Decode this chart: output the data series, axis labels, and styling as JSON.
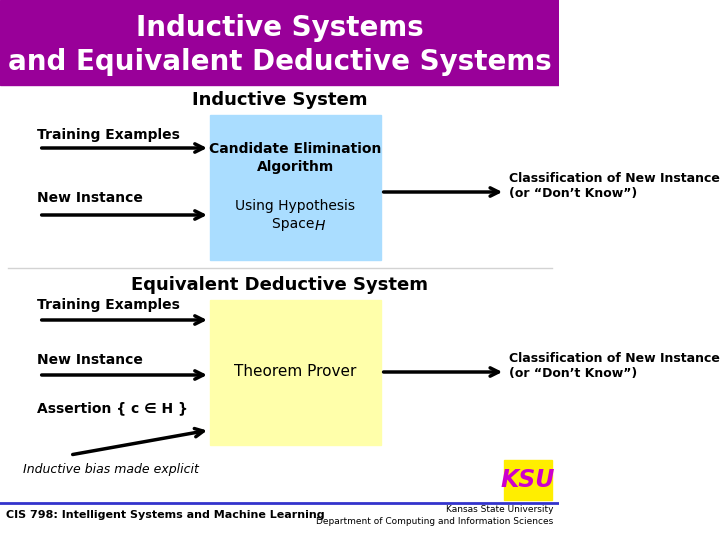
{
  "title_line1": "Inductive Systems",
  "title_line2": "and Equivalent Deductive Systems",
  "title_bg": "#990099",
  "title_color": "#ffffff",
  "inductive_box_color": "#aaddff",
  "deductive_box_color": "#ffffaa",
  "background": "#ffffff",
  "footer_left": "CIS 798: Intelligent Systems and Machine Learning",
  "footer_right_line1": "Kansas State University",
  "footer_right_line2": "Department of Computing and Information Sciences",
  "bias_label": "Inductive bias made explicit",
  "ksu_color": "#cc00cc"
}
